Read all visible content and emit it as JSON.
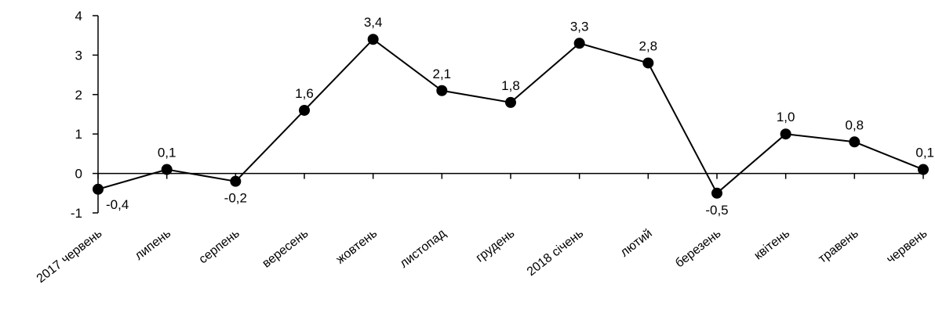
{
  "chart_data": {
    "type": "line",
    "title": "",
    "xlabel": "",
    "ylabel": "",
    "ylim": [
      -1,
      4
    ],
    "yticks": [
      "4",
      "3",
      "2",
      "1",
      "0",
      "-1"
    ],
    "grid": false,
    "legend": "none",
    "categories": [
      "2017 червень",
      "липень",
      "серпень",
      "вересень",
      "жовтень",
      "листопад",
      "грудень",
      "2018 січень",
      "лютий",
      "березень",
      "квітень",
      "травень",
      "червень"
    ],
    "series": [
      {
        "values": [
          -0.4,
          0.1,
          -0.2,
          1.6,
          3.4,
          2.1,
          1.8,
          3.3,
          2.8,
          -0.5,
          1.0,
          0.8,
          0.1
        ],
        "labels": [
          "-0,4",
          "0,1",
          "-0,2",
          "1,6",
          "3,4",
          "2,1",
          "1,8",
          "3,3",
          "2,8",
          "-0,5",
          "1,0",
          "0,8",
          "0,1"
        ]
      }
    ],
    "colors": {
      "line": "#000000",
      "marker": "#000000",
      "axis": "#000000"
    }
  }
}
